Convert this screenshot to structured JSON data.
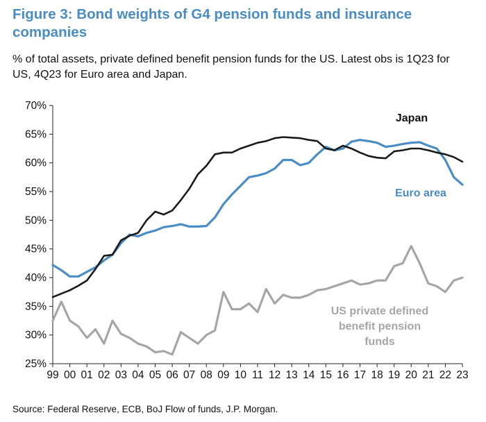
{
  "title": "Figure 3: Bond weights of G4 pension funds and insurance companies",
  "subtitle": "% of total assets, private defined benefit pension funds for the US. Latest obs is 1Q23 for US, 4Q23 for Euro area and Japan.",
  "source": "Source: Federal Reserve, ECB, BoJ Flow of funds, J.P. Morgan.",
  "chart_data": {
    "type": "line",
    "x_tick_labels": [
      "99",
      "00",
      "01",
      "02",
      "03",
      "04",
      "05",
      "06",
      "07",
      "08",
      "09",
      "10",
      "11",
      "12",
      "13",
      "14",
      "15",
      "16",
      "17",
      "18",
      "19",
      "20",
      "21",
      "22",
      "23"
    ],
    "y_tick_labels": [
      "25%",
      "30%",
      "35%",
      "40%",
      "45%",
      "50%",
      "55%",
      "60%",
      "65%",
      "70%"
    ],
    "ylim": [
      25,
      70
    ],
    "xlim": [
      1999,
      2023
    ],
    "grid": false,
    "annotations": [
      {
        "text": "Japan",
        "color": "#111111"
      },
      {
        "text": "Euro area",
        "color": "#4a8cc4"
      },
      {
        "text": "US private defined benefit pension funds",
        "lines": [
          "US private defined",
          "benefit pension",
          "funds"
        ],
        "color": "#a6a6a6"
      }
    ],
    "series": [
      {
        "name": "Japan",
        "color": "#1a1a1a",
        "x": [
          1999,
          1999.5,
          2000,
          2000.5,
          2001,
          2001.5,
          2002,
          2002.5,
          2003,
          2003.5,
          2004,
          2004.5,
          2005,
          2005.5,
          2006,
          2006.5,
          2007,
          2007.5,
          2008,
          2008.5,
          2009,
          2009.5,
          2010,
          2010.5,
          2011,
          2011.5,
          2012,
          2012.5,
          2013,
          2013.5,
          2014,
          2014.5,
          2015,
          2015.5,
          2016,
          2016.5,
          2017,
          2017.5,
          2018,
          2018.5,
          2019,
          2019.5,
          2020,
          2020.5,
          2021,
          2021.5,
          2022,
          2022.5,
          2023
        ],
        "values": [
          36.6,
          37.2,
          37.8,
          38.6,
          39.5,
          41.5,
          43.8,
          44.0,
          46.5,
          47.3,
          47.8,
          50.0,
          51.5,
          51.0,
          51.7,
          53.5,
          55.5,
          58.0,
          59.5,
          61.5,
          61.8,
          61.8,
          62.5,
          63.0,
          63.5,
          63.8,
          64.3,
          64.5,
          64.4,
          64.3,
          64.0,
          63.8,
          62.5,
          62.2,
          63.0,
          62.5,
          61.8,
          61.2,
          60.9,
          60.8,
          62.0,
          62.2,
          62.5,
          62.5,
          62.2,
          61.8,
          61.5,
          61.0,
          60.2
        ]
      },
      {
        "name": "Euro area",
        "color": "#4a8cc4",
        "x": [
          1999,
          1999.5,
          2000,
          2000.5,
          2001,
          2001.5,
          2002,
          2002.5,
          2003,
          2003.5,
          2004,
          2004.5,
          2005,
          2005.5,
          2006,
          2006.5,
          2007,
          2007.5,
          2008,
          2008.5,
          2009,
          2009.5,
          2010,
          2010.5,
          2011,
          2011.5,
          2012,
          2012.5,
          2013,
          2013.5,
          2014,
          2014.5,
          2015,
          2015.5,
          2016,
          2016.5,
          2017,
          2017.5,
          2018,
          2018.5,
          2019,
          2019.5,
          2020,
          2020.5,
          2021,
          2021.5,
          2022,
          2022.5,
          2023
        ],
        "values": [
          42.2,
          41.3,
          40.2,
          40.2,
          41.0,
          41.8,
          43.0,
          44.0,
          46.0,
          47.5,
          47.2,
          47.8,
          48.2,
          48.8,
          49.0,
          49.3,
          48.9,
          48.9,
          49.0,
          50.5,
          52.8,
          54.5,
          56.0,
          57.5,
          57.8,
          58.2,
          59.0,
          60.5,
          60.5,
          59.6,
          60.0,
          61.5,
          62.8,
          62.2,
          62.5,
          63.7,
          64.0,
          63.8,
          63.5,
          62.8,
          63.0,
          63.3,
          63.5,
          63.6,
          63.0,
          62.5,
          60.5,
          57.5,
          56.2
        ]
      },
      {
        "name": "US private defined benefit pension funds",
        "color": "#a6a6a6",
        "x": [
          1999,
          1999.5,
          2000,
          2000.5,
          2001,
          2001.5,
          2002,
          2002.5,
          2003,
          2003.5,
          2004,
          2004.5,
          2005,
          2005.5,
          2006,
          2006.5,
          2007,
          2007.5,
          2008,
          2008.5,
          2009,
          2009.5,
          2010,
          2010.5,
          2011,
          2011.5,
          2012,
          2012.5,
          2013,
          2013.5,
          2014,
          2014.5,
          2015,
          2015.5,
          2016,
          2016.5,
          2017,
          2017.5,
          2018,
          2018.5,
          2019,
          2019.5,
          2020,
          2020.5,
          2021,
          2021.5,
          2022,
          2022.5,
          2023
        ],
        "values": [
          32.5,
          35.8,
          32.5,
          31.5,
          29.5,
          31.0,
          28.5,
          32.5,
          30.2,
          29.5,
          28.5,
          28.0,
          27.0,
          27.2,
          26.6,
          30.5,
          29.5,
          28.5,
          30.0,
          30.8,
          37.5,
          34.5,
          34.5,
          35.5,
          34.0,
          38.0,
          35.5,
          37.0,
          36.5,
          36.5,
          37.0,
          37.8,
          38.0,
          38.5,
          39.0,
          39.5,
          38.8,
          39.0,
          39.5,
          39.5,
          42.0,
          42.5,
          45.5,
          42.5,
          39.0,
          38.5,
          37.5,
          39.5,
          40.0
        ]
      }
    ]
  }
}
